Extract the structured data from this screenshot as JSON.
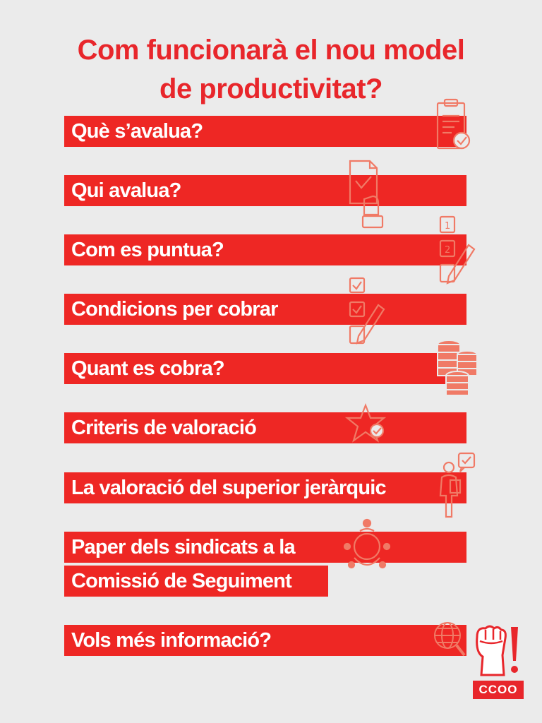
{
  "title": {
    "line1": "Com funcionarà el nou model",
    "line2": "de productivitat?"
  },
  "items": [
    {
      "label": "Què s’avalua?",
      "icon": "clipboard-check-icon"
    },
    {
      "label": "Qui avalua?",
      "icon": "document-hand-icon"
    },
    {
      "label": "Com es puntua?",
      "icon": "numbered-list-pencil-icon"
    },
    {
      "label": "Condicions per cobrar",
      "icon": "checklist-pencil-icon"
    },
    {
      "label": "Quant es cobra?",
      "icon": "coin-stacks-icon"
    },
    {
      "label": "Criteris de valoració",
      "icon": "star-check-icon"
    },
    {
      "label": "La valoració del superior jeràrquic",
      "icon": "person-approval-icon"
    },
    {
      "label": "Paper dels sindicats a la",
      "icon": "team-circle-icon"
    },
    {
      "label": "Comissió de Seguiment"
    },
    {
      "label": "Vols més informació?",
      "icon": "globe-search-icon"
    }
  ],
  "logo": {
    "text": "CCOO",
    "icon": "raised-fist-icon"
  },
  "colors": {
    "accent": "#ee2724",
    "title": "#e8262b",
    "icon_stroke": "#f07a66",
    "background": "#ebebeb"
  }
}
